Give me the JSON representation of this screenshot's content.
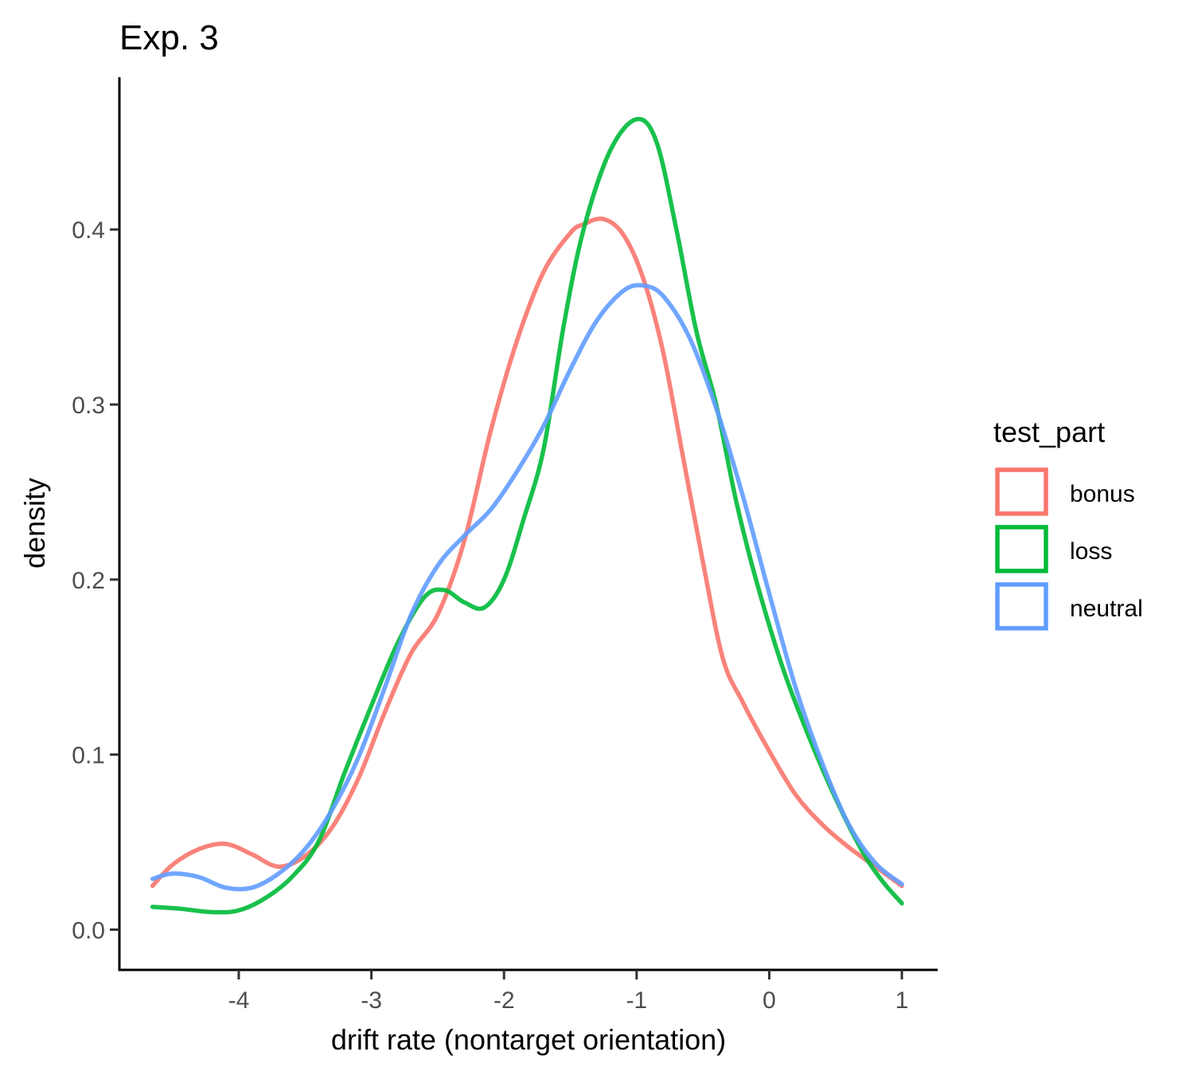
{
  "chart_data": {
    "type": "line",
    "title": "Exp. 3",
    "xlabel": "drift rate (nontarget orientation)",
    "ylabel": "density",
    "xlim": [
      -4.9,
      1.27
    ],
    "ylim": [
      -0.023,
      0.487
    ],
    "xticks": [
      -4,
      -3,
      -2,
      -1,
      0,
      1
    ],
    "xtick_labels": [
      "-4",
      "-3",
      "-2",
      "-1",
      "0",
      "1"
    ],
    "yticks": [
      0.0,
      0.1,
      0.2,
      0.3,
      0.4
    ],
    "ytick_labels": [
      "0.0",
      "0.1",
      "0.2",
      "0.3",
      "0.4"
    ],
    "grid": false,
    "legend": {
      "title": "test_part",
      "placement": "right"
    },
    "series": [
      {
        "name": "bonus",
        "color": "#F8766D",
        "points": [
          [
            -4.65,
            0.025
          ],
          [
            -4.5,
            0.037
          ],
          [
            -4.3,
            0.046
          ],
          [
            -4.1,
            0.049
          ],
          [
            -3.9,
            0.043
          ],
          [
            -3.7,
            0.036
          ],
          [
            -3.5,
            0.042
          ],
          [
            -3.3,
            0.058
          ],
          [
            -3.1,
            0.086
          ],
          [
            -2.9,
            0.124
          ],
          [
            -2.7,
            0.158
          ],
          [
            -2.5,
            0.18
          ],
          [
            -2.3,
            0.222
          ],
          [
            -2.1,
            0.285
          ],
          [
            -1.9,
            0.337
          ],
          [
            -1.7,
            0.376
          ],
          [
            -1.5,
            0.398
          ],
          [
            -1.4,
            0.403
          ],
          [
            -1.25,
            0.406
          ],
          [
            -1.1,
            0.397
          ],
          [
            -0.95,
            0.372
          ],
          [
            -0.8,
            0.33
          ],
          [
            -0.65,
            0.27
          ],
          [
            -0.5,
            0.21
          ],
          [
            -0.35,
            0.155
          ],
          [
            -0.2,
            0.13
          ],
          [
            0.0,
            0.102
          ],
          [
            0.2,
            0.077
          ],
          [
            0.4,
            0.06
          ],
          [
            0.6,
            0.047
          ],
          [
            0.8,
            0.036
          ],
          [
            1.0,
            0.025
          ]
        ]
      },
      {
        "name": "loss",
        "color": "#00BA38",
        "points": [
          [
            -4.65,
            0.013
          ],
          [
            -4.45,
            0.012
          ],
          [
            -4.2,
            0.01
          ],
          [
            -4.0,
            0.011
          ],
          [
            -3.8,
            0.018
          ],
          [
            -3.6,
            0.03
          ],
          [
            -3.4,
            0.05
          ],
          [
            -3.2,
            0.09
          ],
          [
            -3.0,
            0.128
          ],
          [
            -2.8,
            0.164
          ],
          [
            -2.6,
            0.19
          ],
          [
            -2.45,
            0.194
          ],
          [
            -2.3,
            0.187
          ],
          [
            -2.15,
            0.184
          ],
          [
            -2.0,
            0.2
          ],
          [
            -1.85,
            0.235
          ],
          [
            -1.7,
            0.275
          ],
          [
            -1.55,
            0.345
          ],
          [
            -1.4,
            0.4
          ],
          [
            -1.2,
            0.445
          ],
          [
            -1.0,
            0.463
          ],
          [
            -0.85,
            0.45
          ],
          [
            -0.7,
            0.4
          ],
          [
            -0.55,
            0.342
          ],
          [
            -0.4,
            0.3
          ],
          [
            -0.25,
            0.245
          ],
          [
            -0.1,
            0.2
          ],
          [
            0.1,
            0.15
          ],
          [
            0.3,
            0.11
          ],
          [
            0.5,
            0.075
          ],
          [
            0.7,
            0.045
          ],
          [
            0.85,
            0.028
          ],
          [
            1.0,
            0.015
          ]
        ]
      },
      {
        "name": "neutral",
        "color": "#619CFF",
        "points": [
          [
            -4.65,
            0.029
          ],
          [
            -4.5,
            0.032
          ],
          [
            -4.3,
            0.03
          ],
          [
            -4.1,
            0.024
          ],
          [
            -3.9,
            0.024
          ],
          [
            -3.7,
            0.032
          ],
          [
            -3.5,
            0.046
          ],
          [
            -3.3,
            0.068
          ],
          [
            -3.1,
            0.098
          ],
          [
            -2.9,
            0.138
          ],
          [
            -2.7,
            0.18
          ],
          [
            -2.5,
            0.208
          ],
          [
            -2.3,
            0.225
          ],
          [
            -2.1,
            0.24
          ],
          [
            -1.9,
            0.262
          ],
          [
            -1.7,
            0.288
          ],
          [
            -1.5,
            0.32
          ],
          [
            -1.3,
            0.348
          ],
          [
            -1.1,
            0.365
          ],
          [
            -0.95,
            0.368
          ],
          [
            -0.8,
            0.362
          ],
          [
            -0.6,
            0.338
          ],
          [
            -0.4,
            0.298
          ],
          [
            -0.2,
            0.248
          ],
          [
            0.0,
            0.192
          ],
          [
            0.2,
            0.138
          ],
          [
            0.4,
            0.095
          ],
          [
            0.6,
            0.06
          ],
          [
            0.8,
            0.038
          ],
          [
            1.0,
            0.026
          ]
        ]
      }
    ]
  }
}
